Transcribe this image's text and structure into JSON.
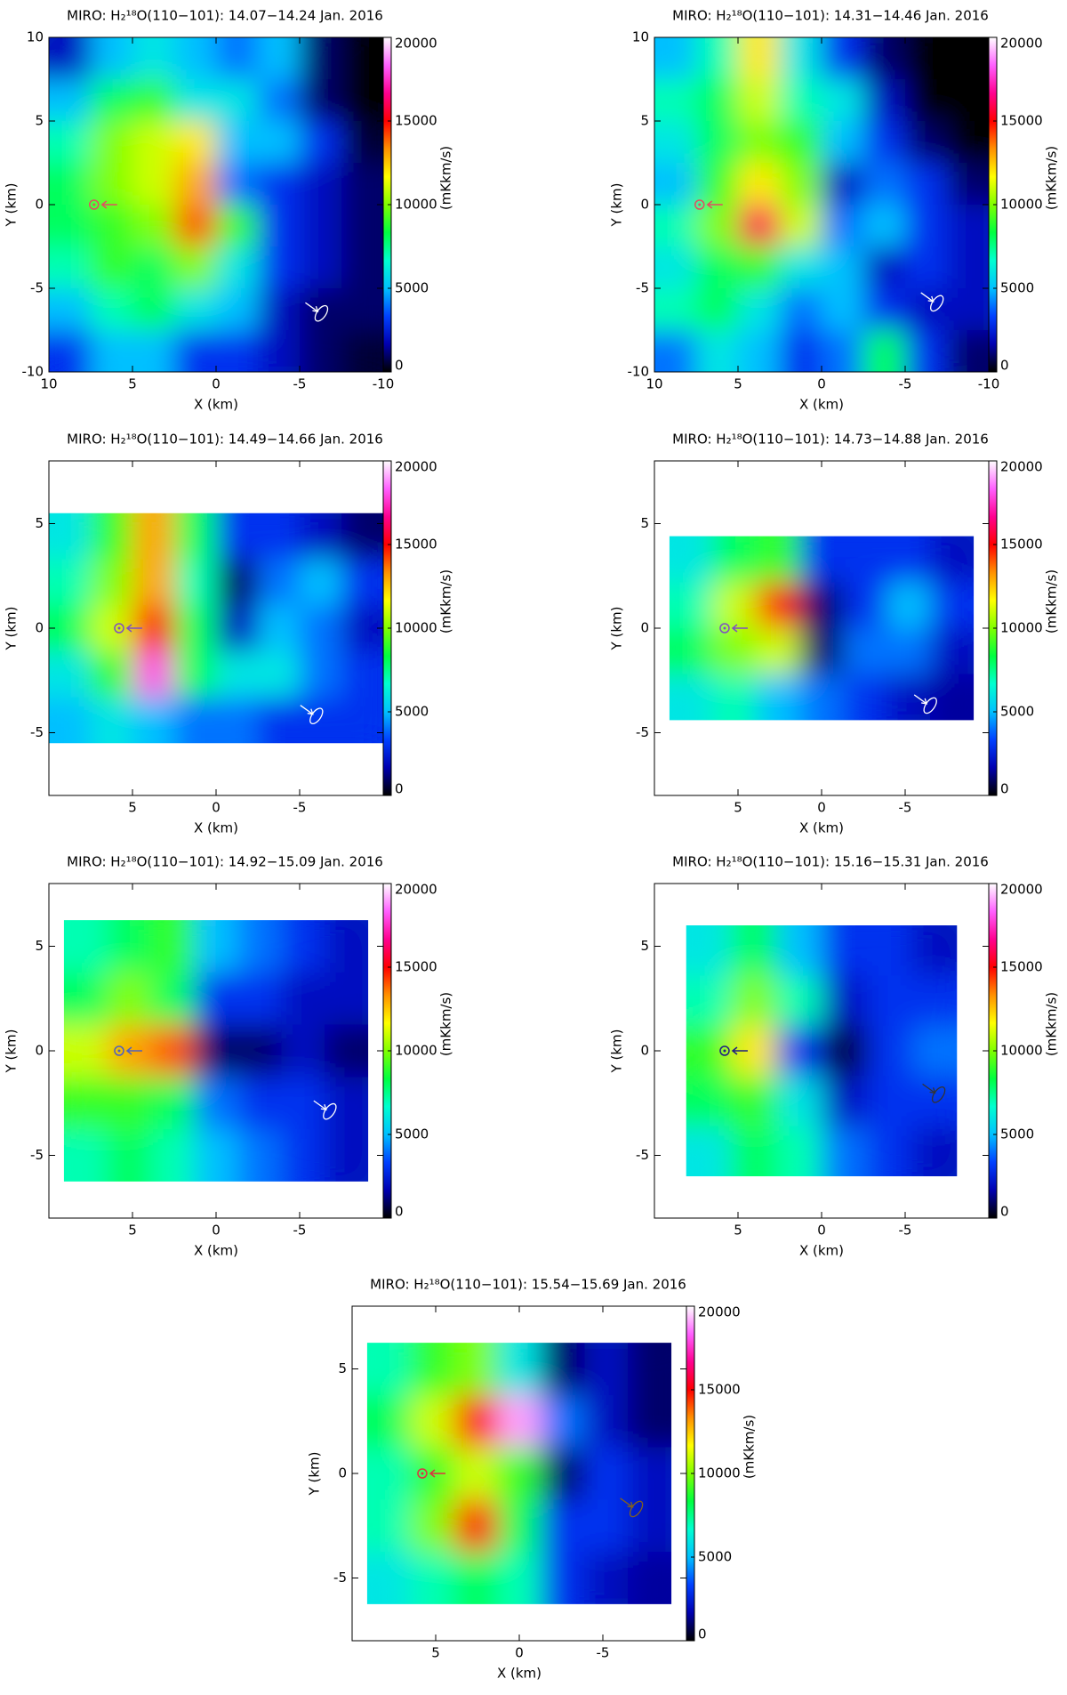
{
  "colormap": [
    "#000000",
    "#0000b0",
    "#0040ff",
    "#00c0ff",
    "#00ffd0",
    "#00ff40",
    "#80ff00",
    "#ffff00",
    "#ff9000",
    "#ff0000",
    "#ff0090",
    "#ff60ff",
    "#ffffff"
  ],
  "chart_data": [
    {
      "type": "heatmap",
      "title": "MIRO: H₂¹⁸O(110−101): 14.07−14.24 Jan. 2016",
      "xlabel": "X (km)",
      "ylabel": "Y (km)",
      "colorbar_label": "(mKkm/s)",
      "xlim": [
        10,
        -10
      ],
      "ylim": [
        -10,
        10
      ],
      "xticks": [
        10,
        5,
        0,
        -5,
        -10
      ],
      "yticks": [
        -10,
        -5,
        0,
        5,
        10
      ],
      "clim": [
        0,
        20000
      ],
      "cticks": [
        0,
        5000,
        10000,
        15000,
        20000
      ],
      "x": [
        8.75,
        6.25,
        3.75,
        1.25,
        -1.25,
        -3.75,
        -6.25,
        -8.75
      ],
      "y": [
        8.75,
        6.25,
        3.75,
        1.25,
        -1.25,
        -3.75,
        -6.25,
        -8.75
      ],
      "values": [
        [
          2000,
          5000,
          6000,
          5000,
          4000,
          5000,
          1000,
          0
        ],
        [
          5000,
          8000,
          9000,
          6000,
          6000,
          4000,
          1000,
          0
        ],
        [
          7000,
          10000,
          11000,
          12000,
          5000,
          5000,
          3000,
          500
        ],
        [
          8000,
          10000,
          11000,
          13000,
          4000,
          3000,
          2000,
          1000
        ],
        [
          8000,
          9000,
          10000,
          14000,
          9000,
          3000,
          2000,
          1000
        ],
        [
          7000,
          9000,
          8000,
          10000,
          6000,
          3000,
          2000,
          1000
        ],
        [
          5000,
          7000,
          8000,
          6000,
          5000,
          2000,
          1000,
          1000
        ],
        [
          3000,
          5000,
          5000,
          3000,
          3000,
          2000,
          1000,
          500
        ]
      ]
    },
    {
      "type": "heatmap",
      "title": "MIRO: H₂¹⁸O(110−101): 14.31−14.46 Jan. 2016",
      "xlabel": "X (km)",
      "ylabel": "Y (km)",
      "colorbar_label": "(mKkm/s)",
      "xlim": [
        10,
        -10
      ],
      "ylim": [
        -10,
        10
      ],
      "xticks": [
        10,
        5,
        0,
        -5,
        -10
      ],
      "yticks": [
        -10,
        -5,
        0,
        5,
        10
      ],
      "clim": [
        0,
        20000
      ],
      "cticks": [
        0,
        5000,
        10000,
        15000,
        20000
      ],
      "x": [
        8.75,
        6.25,
        3.75,
        1.25,
        -1.25,
        -3.75,
        -6.25,
        -8.75
      ],
      "y": [
        8.75,
        6.25,
        3.75,
        1.25,
        -1.25,
        -3.75,
        -6.25,
        -8.75
      ],
      "values": [
        [
          5000,
          7000,
          12000,
          6000,
          3000,
          1000,
          0,
          0
        ],
        [
          7000,
          8000,
          11000,
          7000,
          6000,
          2000,
          0,
          0
        ],
        [
          6000,
          8000,
          10000,
          9000,
          5000,
          3000,
          1000,
          0
        ],
        [
          5000,
          9000,
          12000,
          10000,
          2000,
          4000,
          3000,
          1000
        ],
        [
          7000,
          10000,
          16000,
          11000,
          4000,
          5000,
          3000,
          2000
        ],
        [
          6000,
          8000,
          9000,
          6000,
          5000,
          2000,
          3000,
          2000
        ],
        [
          7000,
          8000,
          6000,
          4000,
          5000,
          3000,
          2000,
          2000
        ],
        [
          4000,
          6000,
          5000,
          3000,
          4000,
          8000,
          3000,
          1000
        ]
      ]
    },
    {
      "type": "heatmap",
      "title": "MIRO: H₂¹⁸O(110−101): 14.49−14.66 Jan. 2016",
      "xlabel": "X (km)",
      "ylabel": "Y (km)",
      "colorbar_label": "(mKkm/s)",
      "xlim": [
        10,
        -10
      ],
      "ylim": [
        -8,
        8
      ],
      "xticks": [
        5,
        0,
        -5
      ],
      "yticks": [
        -5,
        0,
        5
      ],
      "clim": [
        0,
        20000
      ],
      "cticks": [
        0,
        5000,
        10000,
        15000,
        20000
      ],
      "x": [
        8.75,
        6.25,
        3.75,
        1.25,
        -1.25,
        -3.75,
        -6.25,
        -8.75
      ],
      "y": [
        4.4,
        2.2,
        0,
        -2.2,
        -4.4
      ],
      "values": [
        [
          6000,
          9000,
          13000,
          8000,
          3000,
          3000,
          2000,
          1000
        ],
        [
          7000,
          10000,
          13000,
          7000,
          1000,
          4000,
          5000,
          3000
        ],
        [
          8000,
          11000,
          15000,
          8000,
          2000,
          5000,
          4000,
          2000
        ],
        [
          6000,
          9000,
          18000,
          8000,
          6000,
          6000,
          4000,
          3000
        ],
        [
          5000,
          6000,
          5000,
          4000,
          4000,
          3000,
          3000,
          3000
        ]
      ]
    },
    {
      "type": "heatmap",
      "title": "MIRO: H₂¹⁸O(110−101): 14.73−14.88 Jan. 2016",
      "xlabel": "X (km)",
      "ylabel": "Y (km)",
      "colorbar_label": "(mKkm/s)",
      "xlim": [
        10,
        -10
      ],
      "ylim": [
        -8,
        8
      ],
      "xticks": [
        5,
        0,
        -5
      ],
      "yticks": [
        -5,
        0,
        5
      ],
      "clim": [
        0,
        20000
      ],
      "cticks": [
        0,
        5000,
        10000,
        15000,
        20000
      ],
      "x": [
        7.8,
        5.2,
        2.6,
        0,
        -2.6,
        -5.2,
        -7.8
      ],
      "y": [
        3.3,
        1.1,
        -1.1,
        -3.3
      ],
      "values": [
        [
          6000,
          8000,
          9000,
          3000,
          3000,
          3000,
          2000
        ],
        [
          7000,
          11000,
          15000,
          1000,
          3000,
          5000,
          3000
        ],
        [
          8000,
          10000,
          11000,
          1000,
          4000,
          4000,
          2000
        ],
        [
          6000,
          7000,
          5000,
          4000,
          3000,
          2000,
          1500
        ]
      ]
    },
    {
      "type": "heatmap",
      "title": "MIRO: H₂¹⁸O(110−101): 14.92−15.09 Jan. 2016",
      "xlabel": "X (km)",
      "ylabel": "Y (km)",
      "colorbar_label": "(mKkm/s)",
      "xlim": [
        10,
        -10
      ],
      "ylim": [
        -8,
        8
      ],
      "xticks": [
        5,
        0,
        -5
      ],
      "yticks": [
        -5,
        0,
        5
      ],
      "clim": [
        0,
        20000
      ],
      "cticks": [
        0,
        5000,
        10000,
        15000,
        20000
      ],
      "x": [
        7.8,
        5.2,
        2.6,
        0,
        -2.6,
        -5.2,
        -7.8
      ],
      "y": [
        5,
        2.5,
        0,
        -2.5,
        -5
      ],
      "values": [
        [
          7000,
          8000,
          9000,
          5000,
          4000,
          3000,
          2000
        ],
        [
          8000,
          10000,
          8000,
          3000,
          3000,
          2000,
          2000
        ],
        [
          11000,
          13000,
          14000,
          1000,
          1000,
          2000,
          1000
        ],
        [
          9000,
          9000,
          8000,
          4000,
          3000,
          3000,
          2000
        ],
        [
          7000,
          8000,
          7000,
          5000,
          4000,
          3000,
          2000
        ]
      ]
    },
    {
      "type": "heatmap",
      "title": "MIRO: H₂¹⁸O(110−101): 15.16−15.31 Jan. 2016",
      "xlabel": "X (km)",
      "ylabel": "Y (km)",
      "colorbar_label": "(mKkm/s)",
      "xlim": [
        10,
        -10
      ],
      "ylim": [
        -8,
        8
      ],
      "xticks": [
        5,
        0,
        -5
      ],
      "yticks": [
        -5,
        0,
        5
      ],
      "clim": [
        0,
        20000
      ],
      "cticks": [
        0,
        5000,
        10000,
        15000,
        20000
      ],
      "x": [
        6.75,
        4.05,
        1.35,
        -1.35,
        -4.05,
        -6.75
      ],
      "y": [
        4.8,
        2.4,
        0,
        -2.4,
        -4.8
      ],
      "values": [
        [
          6000,
          8000,
          5000,
          3000,
          3000,
          2000
        ],
        [
          7000,
          10000,
          7000,
          2000,
          3000,
          3000
        ],
        [
          9000,
          12000,
          3000,
          500,
          3000,
          4000
        ],
        [
          8000,
          9000,
          6000,
          2000,
          3000,
          3000
        ],
        [
          6000,
          8000,
          7000,
          4000,
          3000,
          2000
        ]
      ]
    },
    {
      "type": "heatmap",
      "title": "MIRO: H₂¹⁸O(110−101): 15.54−15.69 Jan. 2016",
      "xlabel": "X (km)",
      "ylabel": "Y (km)",
      "colorbar_label": "(mKkm/s)",
      "xlim": [
        10,
        -10
      ],
      "ylim": [
        -8,
        8
      ],
      "xticks": [
        5,
        0,
        -5
      ],
      "yticks": [
        -5,
        0,
        5
      ],
      "clim": [
        0,
        20000
      ],
      "cticks": [
        0,
        5000,
        10000,
        15000,
        20000
      ],
      "x": [
        7.8,
        5.2,
        2.6,
        0,
        -2.6,
        -5.2,
        -7.8
      ],
      "y": [
        5,
        2.5,
        0,
        -2.5,
        -5
      ],
      "values": [
        [
          7000,
          9000,
          10000,
          6000,
          1000,
          2000,
          1000
        ],
        [
          8000,
          11000,
          15000,
          19000,
          4000,
          2000,
          1000
        ],
        [
          7000,
          9000,
          11000,
          9000,
          1000,
          3000,
          2000
        ],
        [
          7000,
          10000,
          15000,
          8000,
          3000,
          3000,
          2000
        ],
        [
          6000,
          7000,
          8000,
          7000,
          3000,
          2000,
          1500
        ]
      ]
    }
  ]
}
